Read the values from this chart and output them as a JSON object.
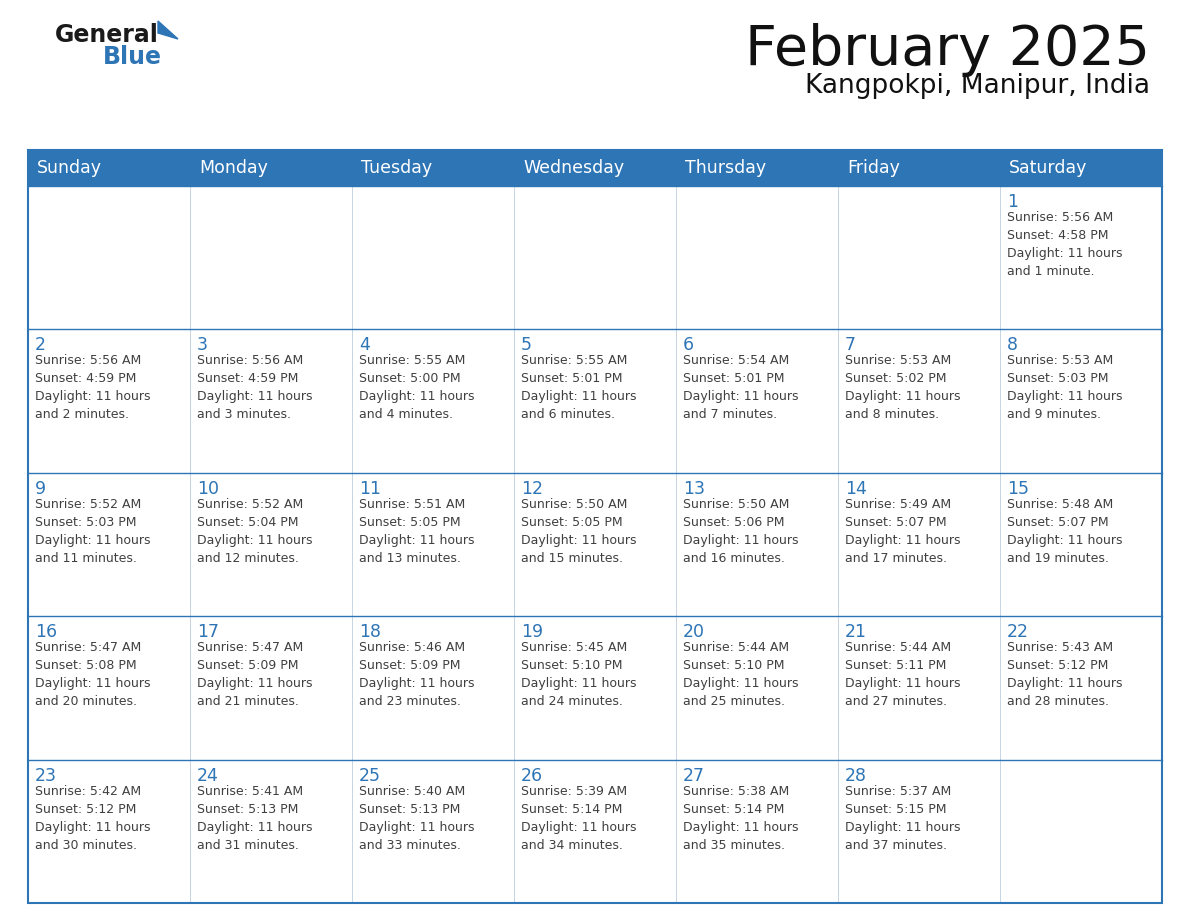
{
  "title": "February 2025",
  "subtitle": "Kangpokpi, Manipur, India",
  "header_bg": "#2E75B6",
  "header_text_color": "#FFFFFF",
  "cell_bg": "#FFFFFF",
  "cell_bg_alt": "#F0F4F8",
  "day_number_color": "#2E75B6",
  "text_color": "#404040",
  "border_color": "#2E75B6",
  "grid_line_color": "#C8D8E8",
  "days_of_week": [
    "Sunday",
    "Monday",
    "Tuesday",
    "Wednesday",
    "Thursday",
    "Friday",
    "Saturday"
  ],
  "weeks": [
    [
      {
        "day": null,
        "info": null
      },
      {
        "day": null,
        "info": null
      },
      {
        "day": null,
        "info": null
      },
      {
        "day": null,
        "info": null
      },
      {
        "day": null,
        "info": null
      },
      {
        "day": null,
        "info": null
      },
      {
        "day": 1,
        "info": "Sunrise: 5:56 AM\nSunset: 4:58 PM\nDaylight: 11 hours\nand 1 minute."
      }
    ],
    [
      {
        "day": 2,
        "info": "Sunrise: 5:56 AM\nSunset: 4:59 PM\nDaylight: 11 hours\nand 2 minutes."
      },
      {
        "day": 3,
        "info": "Sunrise: 5:56 AM\nSunset: 4:59 PM\nDaylight: 11 hours\nand 3 minutes."
      },
      {
        "day": 4,
        "info": "Sunrise: 5:55 AM\nSunset: 5:00 PM\nDaylight: 11 hours\nand 4 minutes."
      },
      {
        "day": 5,
        "info": "Sunrise: 5:55 AM\nSunset: 5:01 PM\nDaylight: 11 hours\nand 6 minutes."
      },
      {
        "day": 6,
        "info": "Sunrise: 5:54 AM\nSunset: 5:01 PM\nDaylight: 11 hours\nand 7 minutes."
      },
      {
        "day": 7,
        "info": "Sunrise: 5:53 AM\nSunset: 5:02 PM\nDaylight: 11 hours\nand 8 minutes."
      },
      {
        "day": 8,
        "info": "Sunrise: 5:53 AM\nSunset: 5:03 PM\nDaylight: 11 hours\nand 9 minutes."
      }
    ],
    [
      {
        "day": 9,
        "info": "Sunrise: 5:52 AM\nSunset: 5:03 PM\nDaylight: 11 hours\nand 11 minutes."
      },
      {
        "day": 10,
        "info": "Sunrise: 5:52 AM\nSunset: 5:04 PM\nDaylight: 11 hours\nand 12 minutes."
      },
      {
        "day": 11,
        "info": "Sunrise: 5:51 AM\nSunset: 5:05 PM\nDaylight: 11 hours\nand 13 minutes."
      },
      {
        "day": 12,
        "info": "Sunrise: 5:50 AM\nSunset: 5:05 PM\nDaylight: 11 hours\nand 15 minutes."
      },
      {
        "day": 13,
        "info": "Sunrise: 5:50 AM\nSunset: 5:06 PM\nDaylight: 11 hours\nand 16 minutes."
      },
      {
        "day": 14,
        "info": "Sunrise: 5:49 AM\nSunset: 5:07 PM\nDaylight: 11 hours\nand 17 minutes."
      },
      {
        "day": 15,
        "info": "Sunrise: 5:48 AM\nSunset: 5:07 PM\nDaylight: 11 hours\nand 19 minutes."
      }
    ],
    [
      {
        "day": 16,
        "info": "Sunrise: 5:47 AM\nSunset: 5:08 PM\nDaylight: 11 hours\nand 20 minutes."
      },
      {
        "day": 17,
        "info": "Sunrise: 5:47 AM\nSunset: 5:09 PM\nDaylight: 11 hours\nand 21 minutes."
      },
      {
        "day": 18,
        "info": "Sunrise: 5:46 AM\nSunset: 5:09 PM\nDaylight: 11 hours\nand 23 minutes."
      },
      {
        "day": 19,
        "info": "Sunrise: 5:45 AM\nSunset: 5:10 PM\nDaylight: 11 hours\nand 24 minutes."
      },
      {
        "day": 20,
        "info": "Sunrise: 5:44 AM\nSunset: 5:10 PM\nDaylight: 11 hours\nand 25 minutes."
      },
      {
        "day": 21,
        "info": "Sunrise: 5:44 AM\nSunset: 5:11 PM\nDaylight: 11 hours\nand 27 minutes."
      },
      {
        "day": 22,
        "info": "Sunrise: 5:43 AM\nSunset: 5:12 PM\nDaylight: 11 hours\nand 28 minutes."
      }
    ],
    [
      {
        "day": 23,
        "info": "Sunrise: 5:42 AM\nSunset: 5:12 PM\nDaylight: 11 hours\nand 30 minutes."
      },
      {
        "day": 24,
        "info": "Sunrise: 5:41 AM\nSunset: 5:13 PM\nDaylight: 11 hours\nand 31 minutes."
      },
      {
        "day": 25,
        "info": "Sunrise: 5:40 AM\nSunset: 5:13 PM\nDaylight: 11 hours\nand 33 minutes."
      },
      {
        "day": 26,
        "info": "Sunrise: 5:39 AM\nSunset: 5:14 PM\nDaylight: 11 hours\nand 34 minutes."
      },
      {
        "day": 27,
        "info": "Sunrise: 5:38 AM\nSunset: 5:14 PM\nDaylight: 11 hours\nand 35 minutes."
      },
      {
        "day": 28,
        "info": "Sunrise: 5:37 AM\nSunset: 5:15 PM\nDaylight: 11 hours\nand 37 minutes."
      },
      {
        "day": null,
        "info": null
      }
    ]
  ],
  "logo_general_color": "#1a1a1a",
  "logo_blue_color": "#2E75B6",
  "logo_triangle_color": "#2E75B6"
}
